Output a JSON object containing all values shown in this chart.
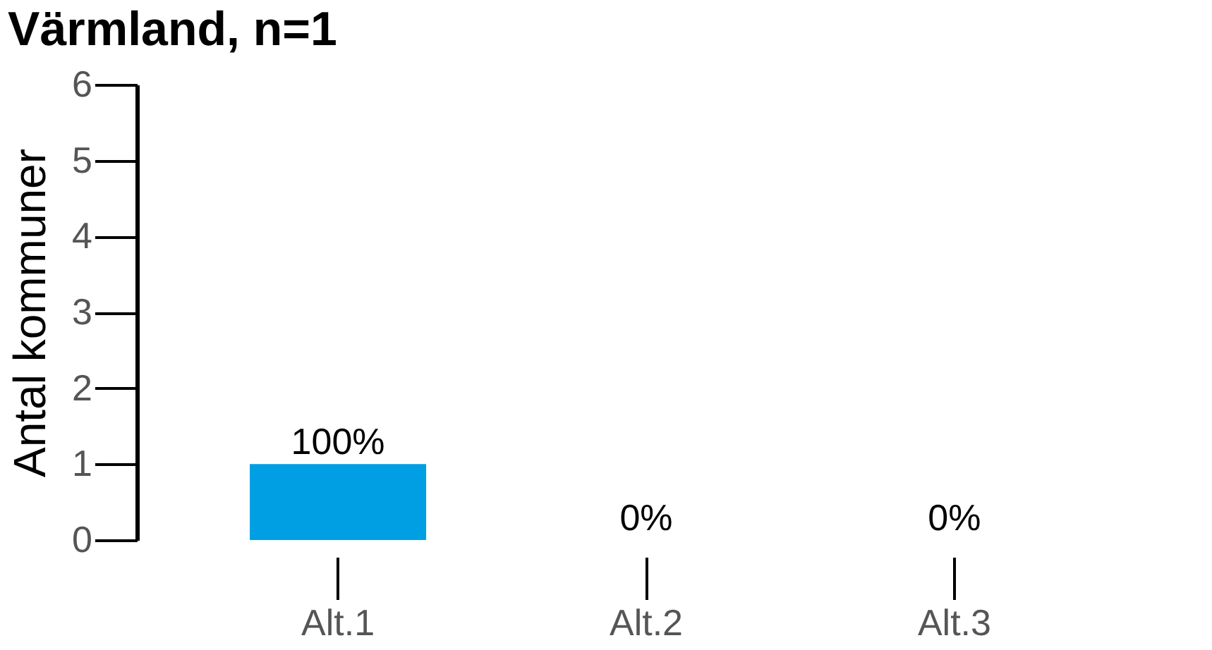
{
  "chart_data": {
    "type": "bar",
    "title": "Värmland, n=1",
    "ylabel": "Antal kommuner",
    "categories": [
      "Alt.1",
      "Alt.2",
      "Alt.3"
    ],
    "values": [
      1,
      0,
      0
    ],
    "value_labels": [
      "100%",
      "0%",
      "0%"
    ],
    "color": "#009fe3",
    "ylim": [
      0,
      6
    ],
    "yticks": [
      0,
      1,
      2,
      3,
      4,
      5,
      6
    ],
    "grid": false
  }
}
